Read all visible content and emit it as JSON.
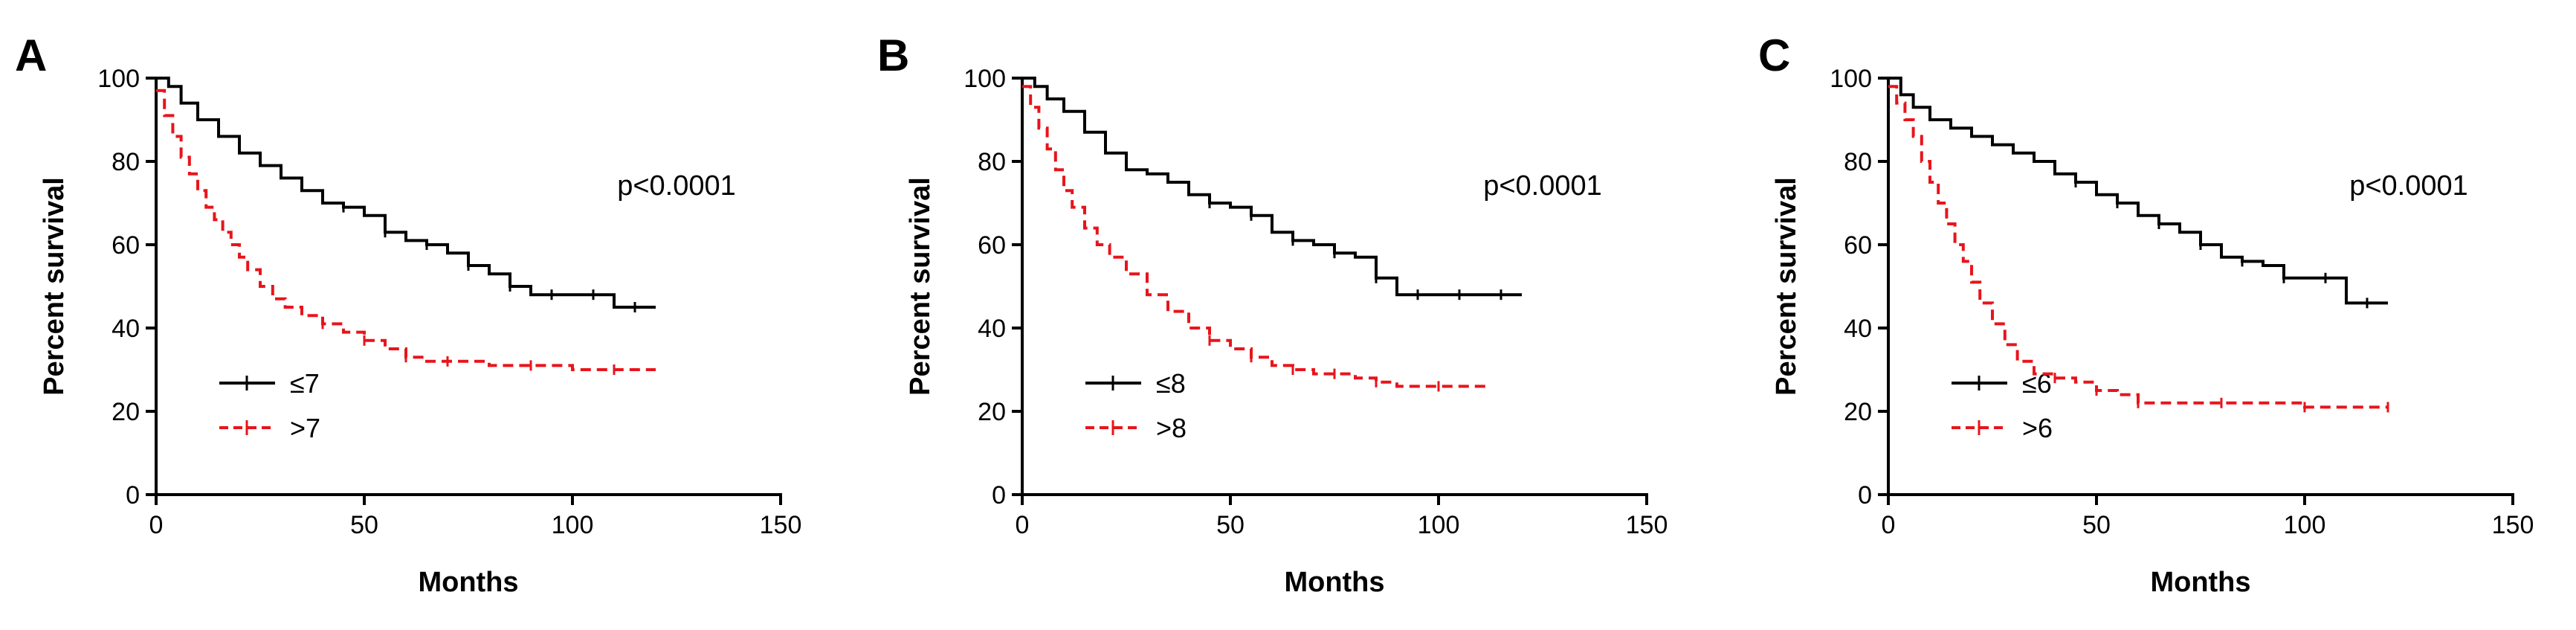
{
  "chart_data": [
    {
      "type": "line",
      "panel": "A",
      "title": "",
      "xlabel": "Months",
      "ylabel": "Percent survival",
      "xlim": [
        0,
        150
      ],
      "ylim": [
        0,
        100
      ],
      "xticks": [
        0,
        50,
        100,
        150
      ],
      "yticks": [
        0,
        20,
        40,
        60,
        80,
        100
      ],
      "annotation": "p<0.0001",
      "legend_position": "bottom-left",
      "series": [
        {
          "name": "≤7",
          "color": "#000000",
          "dashed": false,
          "x": [
            0,
            3,
            6,
            10,
            15,
            20,
            25,
            30,
            35,
            40,
            45,
            50,
            55,
            60,
            65,
            70,
            75,
            80,
            85,
            90,
            95,
            100,
            105,
            110,
            115,
            120
          ],
          "y": [
            100,
            98,
            94,
            90,
            86,
            82,
            79,
            76,
            73,
            70,
            69,
            67,
            63,
            61,
            60,
            58,
            55,
            53,
            50,
            48,
            48,
            48,
            48,
            45,
            45,
            45
          ]
        },
        {
          "name": ">7",
          "color": "#e8141b",
          "dashed": true,
          "x": [
            0,
            2,
            4,
            6,
            8,
            10,
            12,
            14,
            16,
            18,
            20,
            22,
            25,
            28,
            31,
            35,
            40,
            45,
            50,
            55,
            60,
            65,
            70,
            80,
            90,
            100,
            110,
            120
          ],
          "y": [
            97,
            91,
            86,
            81,
            77,
            73,
            69,
            66,
            63,
            60,
            57,
            54,
            50,
            47,
            45,
            43,
            41,
            39,
            37,
            35,
            33,
            32,
            32,
            31,
            31,
            30,
            30,
            30
          ]
        }
      ]
    },
    {
      "type": "line",
      "panel": "B",
      "title": "",
      "xlabel": "Months",
      "ylabel": "Percent survival",
      "xlim": [
        0,
        150
      ],
      "ylim": [
        0,
        100
      ],
      "xticks": [
        0,
        50,
        100,
        150
      ],
      "yticks": [
        0,
        20,
        40,
        60,
        80,
        100
      ],
      "annotation": "p<0.0001",
      "legend_position": "bottom-left",
      "series": [
        {
          "name": "≤8",
          "color": "#000000",
          "dashed": false,
          "x": [
            0,
            3,
            6,
            10,
            15,
            20,
            25,
            30,
            35,
            40,
            45,
            50,
            55,
            60,
            65,
            70,
            75,
            80,
            85,
            90,
            95,
            100,
            105,
            110,
            115,
            120
          ],
          "y": [
            100,
            98,
            95,
            92,
            87,
            82,
            78,
            77,
            75,
            72,
            70,
            69,
            67,
            63,
            61,
            60,
            58,
            57,
            52,
            48,
            48,
            48,
            48,
            48,
            48,
            48
          ]
        },
        {
          "name": ">8",
          "color": "#e8141b",
          "dashed": true,
          "x": [
            0,
            2,
            4,
            6,
            8,
            10,
            12,
            15,
            18,
            21,
            25,
            30,
            35,
            40,
            45,
            50,
            55,
            60,
            65,
            70,
            75,
            80,
            85,
            90,
            100,
            112
          ],
          "y": [
            98,
            93,
            88,
            83,
            78,
            73,
            69,
            64,
            60,
            57,
            53,
            48,
            44,
            40,
            37,
            35,
            33,
            31,
            30,
            29,
            29,
            28,
            27,
            26,
            26,
            26
          ]
        }
      ]
    },
    {
      "type": "line",
      "panel": "C",
      "title": "",
      "xlabel": "Months",
      "ylabel": "Percent survival",
      "xlim": [
        0,
        150
      ],
      "ylim": [
        0,
        100
      ],
      "xticks": [
        0,
        50,
        100,
        150
      ],
      "yticks": [
        0,
        20,
        40,
        60,
        80,
        100
      ],
      "annotation": "p<0.0001",
      "legend_position": "bottom-left",
      "series": [
        {
          "name": "≤6",
          "color": "#000000",
          "dashed": false,
          "x": [
            0,
            3,
            6,
            10,
            15,
            20,
            25,
            30,
            35,
            40,
            45,
            50,
            55,
            60,
            65,
            70,
            75,
            80,
            85,
            90,
            95,
            100,
            105,
            110,
            115,
            120
          ],
          "y": [
            100,
            96,
            93,
            90,
            88,
            86,
            84,
            82,
            80,
            77,
            75,
            72,
            70,
            67,
            65,
            63,
            60,
            57,
            56,
            55,
            52,
            52,
            52,
            46,
            46,
            46
          ]
        },
        {
          "name": ">6",
          "color": "#e8141b",
          "dashed": true,
          "x": [
            0,
            2,
            4,
            6,
            8,
            10,
            12,
            14,
            16,
            18,
            20,
            22,
            25,
            28,
            31,
            35,
            40,
            45,
            50,
            55,
            60,
            70,
            80,
            90,
            100,
            110,
            120
          ],
          "y": [
            98,
            94,
            90,
            86,
            80,
            75,
            70,
            65,
            60,
            56,
            51,
            46,
            41,
            36,
            32,
            29,
            28,
            27,
            25,
            24,
            22,
            22,
            22,
            22,
            21,
            21,
            21
          ]
        }
      ]
    }
  ]
}
